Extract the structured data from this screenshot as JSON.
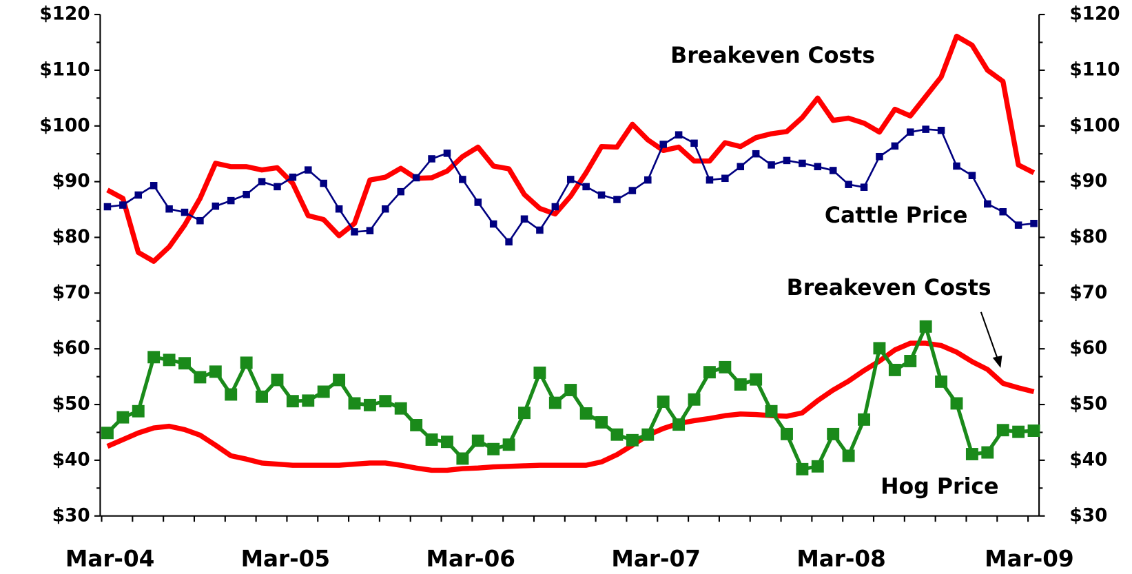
{
  "chart_data": {
    "type": "line",
    "categories": [
      "Mar-04",
      null,
      null,
      null,
      null,
      null,
      null,
      null,
      null,
      null,
      null,
      null,
      "Mar-05",
      null,
      null,
      null,
      null,
      null,
      null,
      null,
      null,
      null,
      null,
      null,
      "Mar-06",
      null,
      null,
      null,
      null,
      null,
      null,
      null,
      null,
      null,
      null,
      null,
      "Mar-07",
      null,
      null,
      null,
      null,
      null,
      null,
      null,
      null,
      null,
      null,
      null,
      "Mar-08",
      null,
      null,
      null,
      null,
      null,
      null,
      null,
      null,
      null,
      null,
      null,
      "Mar-09"
    ],
    "series": [
      {
        "name": "Breakeven Costs",
        "color": "#ff0000",
        "values": [
          88.5,
          87,
          77.3,
          75.7,
          78.3,
          82.2,
          87,
          93.3,
          92.7,
          92.7,
          92.1,
          92.5,
          89.7,
          83.9,
          83.2,
          80.3,
          82.5,
          90.3,
          90.8,
          92.4,
          90.6,
          90.7,
          91.9,
          94.5,
          96.2,
          92.8,
          92.3,
          87.7,
          85.2,
          84.2,
          87.4,
          91.6,
          96.3,
          96.2,
          100.3,
          97.5,
          95.6,
          96.2,
          93.7,
          93.7,
          97,
          96.3,
          97.9,
          98.6,
          99,
          101.5,
          105,
          101,
          101.4,
          100.5,
          98.9,
          103,
          101.8,
          105.3,
          108.8,
          116.1,
          114.5,
          110,
          108,
          93,
          91.6
        ]
      },
      {
        "name": "Cattle Price",
        "color": "#000080",
        "values": [
          85.5,
          85.8,
          87.6,
          89.3,
          85.1,
          84.5,
          83,
          85.6,
          86.6,
          87.7,
          90,
          89.1,
          90.8,
          92.1,
          89.7,
          85.1,
          81,
          81.2,
          85.1,
          88.2,
          90.7,
          94.1,
          95.1,
          90.4,
          86.3,
          82.4,
          79.2,
          83.3,
          81.3,
          85.5,
          90.4,
          89.1,
          87.6,
          86.8,
          88.4,
          90.3,
          96.7,
          98.4,
          96.9,
          90.3,
          90.6,
          92.7,
          95,
          93,
          93.8,
          93.3,
          92.7,
          92,
          89.5,
          89,
          94.5,
          96.4,
          98.9,
          99.4,
          99.2,
          92.8,
          91.1,
          86,
          84.6,
          82.2,
          82.5
        ]
      },
      {
        "name": "Breakeven Costs",
        "color": "#ff0000",
        "values": [
          42.5,
          43.7,
          44.9,
          45.8,
          46.1,
          45.5,
          44.5,
          42.7,
          40.8,
          40.2,
          39.5,
          39.3,
          39.1,
          39.1,
          39.1,
          39.1,
          39.3,
          39.5,
          39.5,
          39.1,
          38.6,
          38.2,
          38.2,
          38.5,
          38.6,
          38.8,
          38.9,
          39,
          39.1,
          39.1,
          39.1,
          39.1,
          39.7,
          41,
          42.7,
          44.5,
          45.7,
          46.6,
          47.1,
          47.5,
          48,
          48.3,
          48.2,
          48,
          47.9,
          48.5,
          50.7,
          52.6,
          54.2,
          56.1,
          57.8,
          59.8,
          61,
          61,
          60.6,
          59.4,
          57.7,
          56.3,
          53.8,
          53,
          52.3
        ]
      },
      {
        "name": "Hog Price",
        "color": "#1a8a1a",
        "values": [
          44.9,
          47.7,
          48.8,
          58.5,
          58,
          57.4,
          54.9,
          55.9,
          51.8,
          57.5,
          51.4,
          54.4,
          50.6,
          50.7,
          52.3,
          54.4,
          50.2,
          49.9,
          50.6,
          49.3,
          46.3,
          43.7,
          43.3,
          40.3,
          43.5,
          42,
          42.8,
          48.5,
          55.7,
          50.3,
          52.6,
          48.4,
          46.8,
          44.6,
          43.6,
          44.6,
          50.5,
          46.4,
          50.9,
          55.8,
          56.7,
          53.6,
          54.5,
          48.8,
          44.7,
          38.4,
          38.9,
          44.7,
          40.8,
          47.3,
          60.1,
          56.2,
          57.8,
          64,
          54.1,
          50.2,
          41.1,
          41.4,
          45.4,
          45.1,
          45.3
        ]
      }
    ],
    "ylim": [
      30,
      120
    ],
    "yticks": [
      {
        "value": 30,
        "label": "$30"
      },
      {
        "value": 40,
        "label": "$40"
      },
      {
        "value": 50,
        "label": "$50"
      },
      {
        "value": 60,
        "label": "$60"
      },
      {
        "value": 70,
        "label": "$70"
      },
      {
        "value": 80,
        "label": "$80"
      },
      {
        "value": 90,
        "label": "$90"
      },
      {
        "value": 100,
        "label": "$100"
      },
      {
        "value": 110,
        "label": "$110"
      },
      {
        "value": 120,
        "label": "$120"
      }
    ],
    "y2lim": [
      30,
      120
    ],
    "y2ticks": [
      {
        "value": 30,
        "label": "$30"
      },
      {
        "value": 40,
        "label": "$40"
      },
      {
        "value": 50,
        "label": "$50"
      },
      {
        "value": 60,
        "label": "$60"
      },
      {
        "value": 70,
        "label": "$70"
      },
      {
        "value": 80,
        "label": "$80"
      },
      {
        "value": 90,
        "label": "$90"
      },
      {
        "value": 100,
        "label": "$100"
      },
      {
        "value": 110,
        "label": "$110"
      },
      {
        "value": 120,
        "label": "$120"
      }
    ]
  }
}
